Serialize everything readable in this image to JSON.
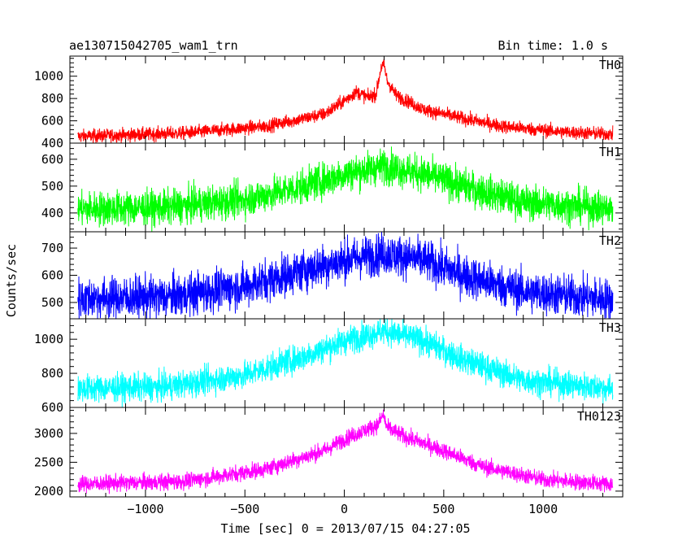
{
  "chart_data": {
    "type": "line",
    "title": "ae130715042705_wam1_trn",
    "subtitle": "Bin time: 1.0 s",
    "xlabel": "Time [sec] 0 = 2013/07/15 04:27:05",
    "ylabel": "Counts/sec",
    "xlim": [
      -1380,
      1400
    ],
    "x_ticks": [
      -1000,
      -500,
      0,
      500,
      1000
    ],
    "x_tick_labels": [
      "−1000",
      "−500",
      "0",
      "500",
      "1000"
    ],
    "x_range_data": [
      -1340,
      1350
    ],
    "bin_time_s": 1.0,
    "panels": [
      {
        "name": "TH0",
        "color": "#ff0000",
        "ylim": [
          400,
          1180
        ],
        "y_ticks": [
          400,
          600,
          800,
          1000
        ],
        "y_tick_labels": [
          "400",
          "600",
          "800",
          "1000"
        ],
        "noise": 30,
        "profile": [
          [
            -1340,
            460
          ],
          [
            -800,
            490
          ],
          [
            -400,
            550
          ],
          [
            -100,
            660
          ],
          [
            0,
            780
          ],
          [
            60,
            860
          ],
          [
            120,
            810
          ],
          [
            160,
            840
          ],
          [
            185,
            1080
          ],
          [
            200,
            1100
          ],
          [
            215,
            960
          ],
          [
            260,
            830
          ],
          [
            400,
            700
          ],
          [
            600,
            620
          ],
          [
            800,
            550
          ],
          [
            1100,
            500
          ],
          [
            1350,
            480
          ]
        ]
      },
      {
        "name": "TH1",
        "color": "#00ff00",
        "ylim": [
          330,
          660
        ],
        "y_ticks": [
          400,
          500,
          600
        ],
        "y_tick_labels": [
          "400",
          "500",
          "600"
        ],
        "noise": 32,
        "profile": [
          [
            -1340,
            415
          ],
          [
            -900,
            420
          ],
          [
            -500,
            450
          ],
          [
            -200,
            500
          ],
          [
            0,
            545
          ],
          [
            200,
            575
          ],
          [
            400,
            545
          ],
          [
            600,
            500
          ],
          [
            900,
            440
          ],
          [
            1350,
            415
          ]
        ]
      },
      {
        "name": "TH2",
        "color": "#0000ff",
        "ylim": [
          440,
          760
        ],
        "y_ticks": [
          500,
          600,
          700
        ],
        "y_tick_labels": [
          "500",
          "600",
          "700"
        ],
        "noise": 38,
        "profile": [
          [
            -1340,
            515
          ],
          [
            -900,
            520
          ],
          [
            -500,
            560
          ],
          [
            -200,
            620
          ],
          [
            0,
            655
          ],
          [
            200,
            680
          ],
          [
            400,
            655
          ],
          [
            600,
            600
          ],
          [
            900,
            540
          ],
          [
            1350,
            510
          ]
        ]
      },
      {
        "name": "TH3",
        "color": "#00ffff",
        "ylim": [
          600,
          1120
        ],
        "y_ticks": [
          600,
          800,
          1000
        ],
        "y_tick_labels": [
          "600",
          "800",
          "1000"
        ],
        "noise": 40,
        "profile": [
          [
            -1340,
            710
          ],
          [
            -900,
            720
          ],
          [
            -500,
            790
          ],
          [
            -200,
            900
          ],
          [
            0,
            990
          ],
          [
            200,
            1050
          ],
          [
            400,
            990
          ],
          [
            600,
            880
          ],
          [
            900,
            760
          ],
          [
            1350,
            710
          ]
        ]
      },
      {
        "name": "TH0123",
        "color": "#ff00ff",
        "ylim": [
          1900,
          3450
        ],
        "y_ticks": [
          2000,
          2500,
          3000
        ],
        "y_tick_labels": [
          "2000",
          "2500",
          "3000"
        ],
        "noise": 70,
        "profile": [
          [
            -1340,
            2120
          ],
          [
            -800,
            2170
          ],
          [
            -400,
            2380
          ],
          [
            -100,
            2700
          ],
          [
            0,
            2900
          ],
          [
            100,
            3050
          ],
          [
            170,
            3150
          ],
          [
            195,
            3330
          ],
          [
            215,
            3100
          ],
          [
            300,
            2950
          ],
          [
            500,
            2700
          ],
          [
            700,
            2420
          ],
          [
            1000,
            2200
          ],
          [
            1350,
            2120
          ]
        ]
      }
    ]
  }
}
